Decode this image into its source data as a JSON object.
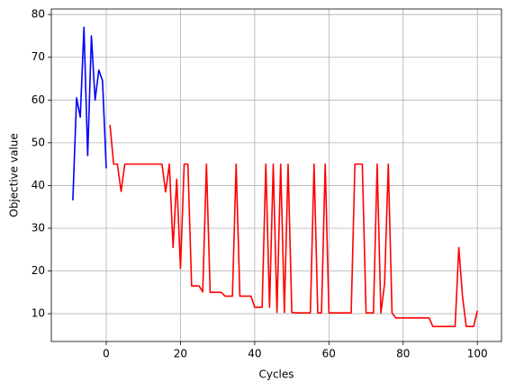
{
  "chart_data": {
    "type": "line",
    "x_label": "Cycles",
    "y_label": "Objective value",
    "xlim": [
      -14.8,
      106.5
    ],
    "ylim": [
      3.5,
      81.3
    ],
    "xticks": [
      0,
      20,
      40,
      60,
      80,
      100
    ],
    "yticks": [
      10,
      20,
      30,
      40,
      50,
      60,
      70,
      80
    ],
    "grid": true,
    "series": [
      {
        "color": "#0000ff",
        "x": [
          -9,
          -8,
          -7,
          -6,
          -5,
          -4,
          -3,
          -2,
          -1,
          0
        ],
        "values": [
          36.5,
          60.5,
          56,
          77,
          47,
          75,
          60,
          67,
          64.5,
          44
        ]
      },
      {
        "color": "#ff0000",
        "x": [
          1,
          2,
          3,
          4,
          5,
          6,
          7,
          8,
          9,
          10,
          11,
          12,
          13,
          14,
          15,
          16,
          17,
          18,
          19,
          20,
          21,
          22,
          23,
          24,
          25,
          26,
          27,
          28,
          29,
          30,
          31,
          32,
          33,
          34,
          35,
          36,
          37,
          38,
          39,
          40,
          41,
          42,
          43,
          44,
          45,
          46,
          47,
          48,
          49,
          50,
          51,
          52,
          53,
          54,
          55,
          56,
          57,
          58,
          59,
          60,
          61,
          62,
          63,
          64,
          65,
          66,
          67,
          68,
          69,
          70,
          71,
          72,
          73,
          74,
          75,
          76,
          77,
          78,
          79,
          80,
          81,
          82,
          83,
          84,
          85,
          86,
          87,
          88,
          89,
          90,
          91,
          92,
          93,
          94,
          95,
          96,
          97,
          98,
          99,
          100
        ],
        "values": [
          54.2,
          45,
          45,
          38.6,
          45,
          45,
          45,
          45,
          45,
          45,
          45,
          45,
          45,
          45,
          45,
          38.5,
          45,
          25.5,
          41.5,
          20.6,
          45,
          45,
          16.5,
          16.5,
          16.5,
          15.1,
          45,
          15,
          15,
          15,
          15,
          14.1,
          14.1,
          14.1,
          45,
          14.1,
          14.1,
          14.1,
          14.1,
          11.5,
          11.5,
          11.5,
          45,
          11.5,
          45,
          10.3,
          45,
          10.3,
          45,
          10.3,
          10.2,
          10.2,
          10.2,
          10.2,
          10.2,
          45,
          10.2,
          10.2,
          45,
          10.2,
          10.2,
          10.2,
          10.2,
          10.2,
          10.2,
          10.2,
          45,
          45,
          45,
          10.2,
          10.2,
          10.2,
          45,
          10.2,
          17,
          45,
          10.2,
          9,
          9,
          9,
          9,
          9,
          9,
          9,
          9,
          9,
          9,
          7,
          7,
          7,
          7,
          7,
          7,
          7,
          25.5,
          14,
          7,
          7,
          7,
          10.7
        ]
      }
    ]
  }
}
